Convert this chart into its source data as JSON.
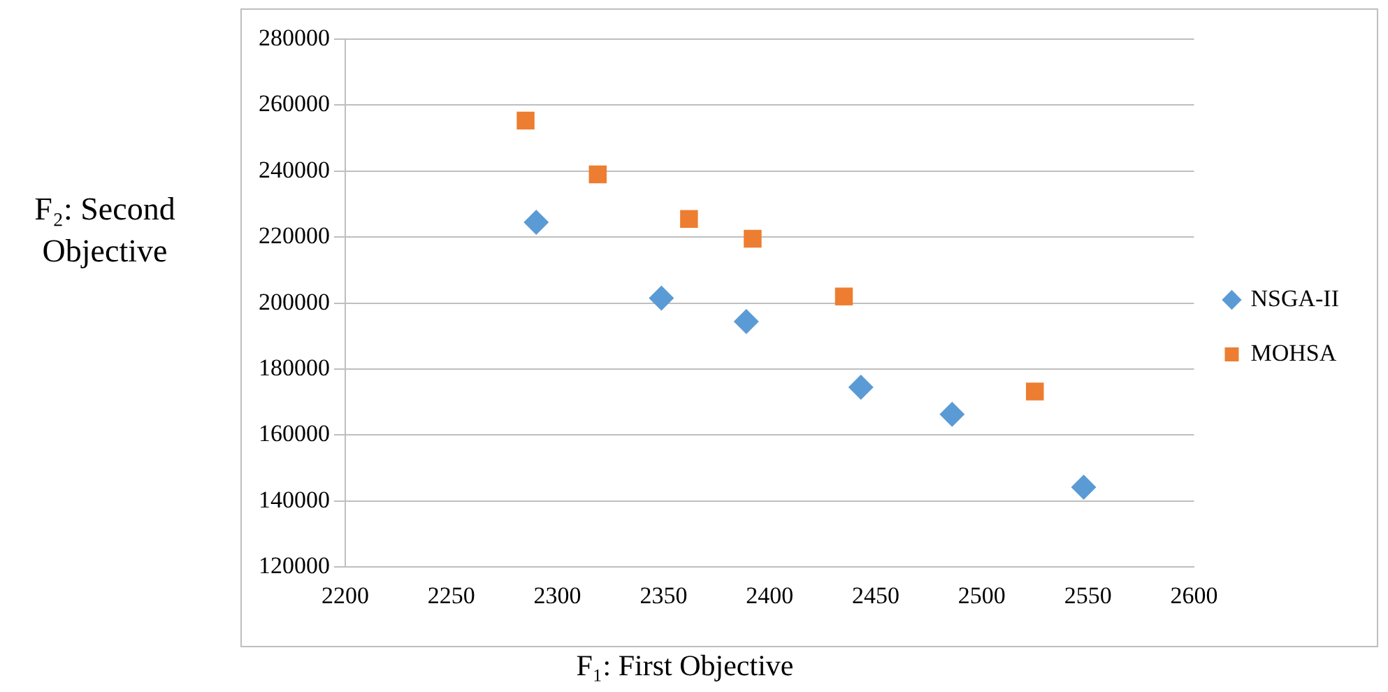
{
  "chart_data": {
    "type": "scatter",
    "xlabel": "F₁: First Objective",
    "ylabel": "F₂: Second Objective",
    "xlim": [
      2200,
      2600
    ],
    "xticks": [
      2200,
      2250,
      2300,
      2350,
      2400,
      2450,
      2500,
      2550,
      2600
    ],
    "ylim": [
      120000,
      280000
    ],
    "yticks": [
      120000,
      140000,
      160000,
      180000,
      200000,
      220000,
      240000,
      260000,
      280000
    ],
    "grid": "y",
    "legend": "right",
    "series": [
      {
        "name": "NSGA-II",
        "color": "#5b9bd5",
        "marker": "diamond",
        "x": [
          2290,
          2349,
          2389,
          2443,
          2486,
          2548
        ],
        "values": [
          224500,
          201500,
          194400,
          174500,
          166300,
          144200
        ]
      },
      {
        "name": "MOHSA",
        "color": "#ed7d31",
        "marker": "square",
        "x": [
          2285,
          2319,
          2362,
          2392,
          2435,
          2525
        ],
        "values": [
          255300,
          239000,
          225500,
          219500,
          202000,
          173200
        ]
      }
    ]
  }
}
